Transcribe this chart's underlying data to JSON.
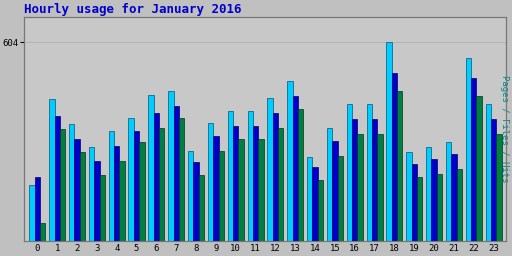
{
  "title": "Hourly usage for January 2016",
  "ylabel_right": "Pages / Files / Hits",
  "hours": [
    0,
    1,
    2,
    3,
    4,
    5,
    6,
    7,
    8,
    9,
    10,
    11,
    12,
    13,
    14,
    15,
    16,
    17,
    18,
    19,
    20,
    21,
    22,
    23
  ],
  "pages": [
    55,
    340,
    270,
    200,
    245,
    300,
    345,
    375,
    200,
    275,
    310,
    310,
    345,
    400,
    185,
    260,
    325,
    325,
    455,
    195,
    205,
    220,
    440,
    325
  ],
  "files": [
    195,
    380,
    310,
    245,
    290,
    335,
    390,
    410,
    240,
    320,
    350,
    350,
    390,
    440,
    225,
    305,
    370,
    370,
    510,
    235,
    250,
    265,
    495,
    370
  ],
  "hits": [
    170,
    430,
    355,
    285,
    335,
    375,
    445,
    455,
    275,
    360,
    395,
    395,
    435,
    485,
    255,
    345,
    415,
    415,
    604,
    270,
    285,
    300,
    555,
    415
  ],
  "color_pages": "#008040",
  "color_files": "#0000cc",
  "color_hits": "#00ccff",
  "bg_color": "#c0c0c0",
  "plot_bg": "#c8c8c8",
  "title_color": "#0000cc",
  "ylabel_color": "#008888",
  "ytick_label": "604",
  "ylim": [
    0,
    680
  ],
  "bar_width": 0.27
}
